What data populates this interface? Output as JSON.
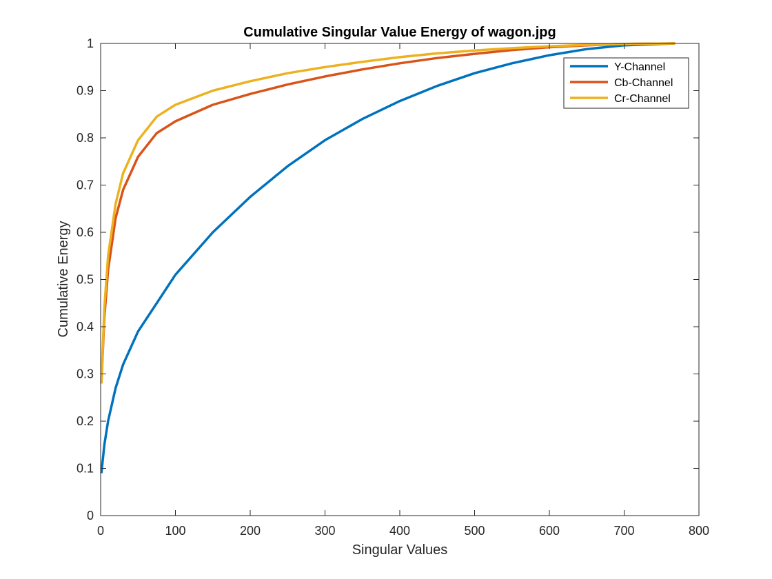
{
  "chart_data": {
    "type": "line",
    "title": "Cumulative Singular Value Energy of wagon.jpg",
    "xlabel": "Singular Values",
    "ylabel": "Cumulative Energy",
    "xlim": [
      0,
      800
    ],
    "ylim": [
      0,
      1
    ],
    "xticks": [
      0,
      100,
      200,
      300,
      400,
      500,
      600,
      700,
      800
    ],
    "yticks": [
      0,
      0.1,
      0.2,
      0.3,
      0.4,
      0.5,
      0.6,
      0.7,
      0.8,
      0.9,
      1
    ],
    "xtick_labels": [
      "0",
      "100",
      "200",
      "300",
      "400",
      "500",
      "600",
      "700",
      "800"
    ],
    "ytick_labels": [
      "0",
      "0.1",
      "0.2",
      "0.3",
      "0.4",
      "0.5",
      "0.6",
      "0.7",
      "0.8",
      "0.9",
      "1"
    ],
    "grid": false,
    "legend_position": "top-right",
    "series": [
      {
        "name": "Y-Channel",
        "color": "#0072BD",
        "points": [
          [
            1,
            0.09
          ],
          [
            5,
            0.15
          ],
          [
            10,
            0.2
          ],
          [
            20,
            0.27
          ],
          [
            30,
            0.32
          ],
          [
            50,
            0.39
          ],
          [
            75,
            0.45
          ],
          [
            100,
            0.51
          ],
          [
            150,
            0.6
          ],
          [
            200,
            0.675
          ],
          [
            250,
            0.74
          ],
          [
            300,
            0.795
          ],
          [
            350,
            0.84
          ],
          [
            400,
            0.878
          ],
          [
            450,
            0.91
          ],
          [
            500,
            0.937
          ],
          [
            550,
            0.958
          ],
          [
            600,
            0.975
          ],
          [
            650,
            0.988
          ],
          [
            700,
            0.996
          ],
          [
            768,
            1.0
          ]
        ]
      },
      {
        "name": "Cb-Channel",
        "color": "#D95319",
        "points": [
          [
            1,
            0.28
          ],
          [
            5,
            0.42
          ],
          [
            10,
            0.52
          ],
          [
            20,
            0.63
          ],
          [
            30,
            0.69
          ],
          [
            50,
            0.76
          ],
          [
            75,
            0.81
          ],
          [
            100,
            0.835
          ],
          [
            150,
            0.87
          ],
          [
            200,
            0.893
          ],
          [
            250,
            0.913
          ],
          [
            300,
            0.93
          ],
          [
            350,
            0.945
          ],
          [
            400,
            0.958
          ],
          [
            450,
            0.969
          ],
          [
            500,
            0.978
          ],
          [
            550,
            0.986
          ],
          [
            600,
            0.992
          ],
          [
            650,
            0.996
          ],
          [
            700,
            0.999
          ],
          [
            768,
            1.0
          ]
        ]
      },
      {
        "name": "Cr-Channel",
        "color": "#EDB120",
        "points": [
          [
            1,
            0.28
          ],
          [
            5,
            0.44
          ],
          [
            10,
            0.55
          ],
          [
            20,
            0.66
          ],
          [
            30,
            0.725
          ],
          [
            50,
            0.795
          ],
          [
            75,
            0.845
          ],
          [
            100,
            0.87
          ],
          [
            150,
            0.9
          ],
          [
            200,
            0.92
          ],
          [
            250,
            0.937
          ],
          [
            300,
            0.95
          ],
          [
            350,
            0.961
          ],
          [
            400,
            0.971
          ],
          [
            450,
            0.979
          ],
          [
            500,
            0.985
          ],
          [
            550,
            0.99
          ],
          [
            600,
            0.994
          ],
          [
            650,
            0.997
          ],
          [
            700,
            0.999
          ],
          [
            768,
            1.0
          ]
        ]
      }
    ]
  }
}
